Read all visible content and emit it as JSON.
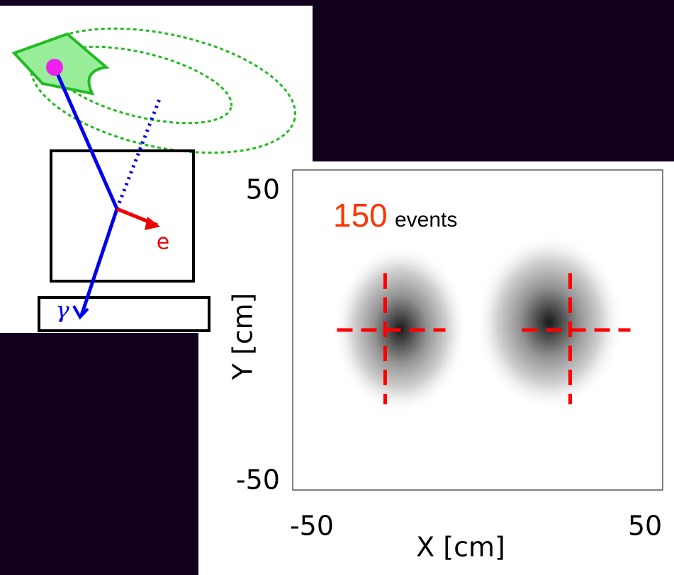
{
  "diagram": {
    "electron_label": "e",
    "gamma_label": "γ"
  },
  "chart_data": {
    "type": "density",
    "annotation": {
      "count": "150",
      "text": "events"
    },
    "xlabel": "X [cm]",
    "ylabel": "Y [cm]",
    "xlim": [
      -50,
      50
    ],
    "ylim": [
      -50,
      50
    ],
    "xticks": [
      -50,
      50
    ],
    "yticks": [
      -50,
      50
    ],
    "markers": {
      "x": [
        -25,
        25
      ],
      "y": [
        0,
        0
      ],
      "color": "#ff0000"
    }
  }
}
